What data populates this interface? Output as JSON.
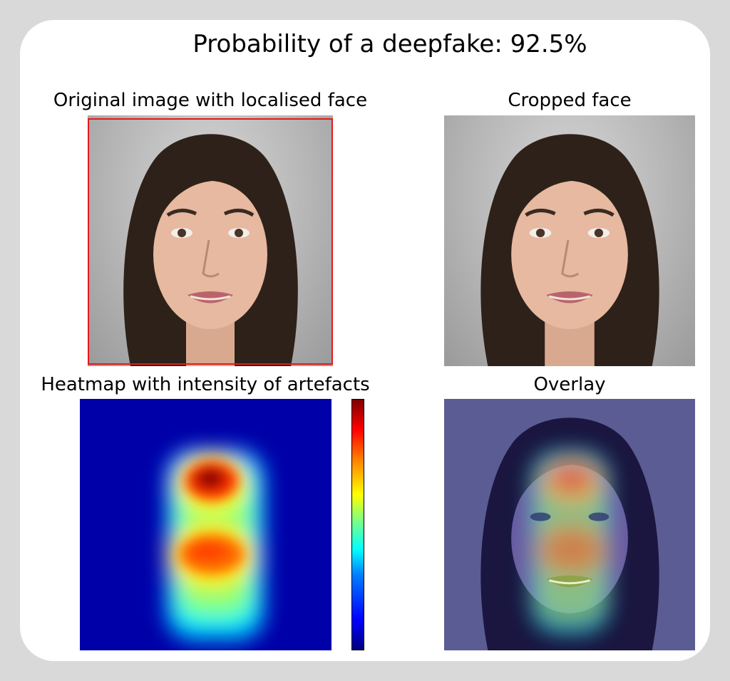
{
  "title": "Probability of a deepfake: 92.5%",
  "deepfake_probability_percent": 92.5,
  "panels": {
    "original": {
      "label": "Original image with localised face"
    },
    "cropped": {
      "label": "Cropped face"
    },
    "heatmap": {
      "label": "Heatmap with intensity of artefacts"
    },
    "overlay": {
      "label": "Overlay"
    }
  },
  "colors": {
    "face_box": "#e51a1a",
    "heatmap_low": "#0000ff",
    "heatmap_high": "#7f0000"
  },
  "colorbar": {
    "colormap": "jet",
    "ticks": []
  }
}
